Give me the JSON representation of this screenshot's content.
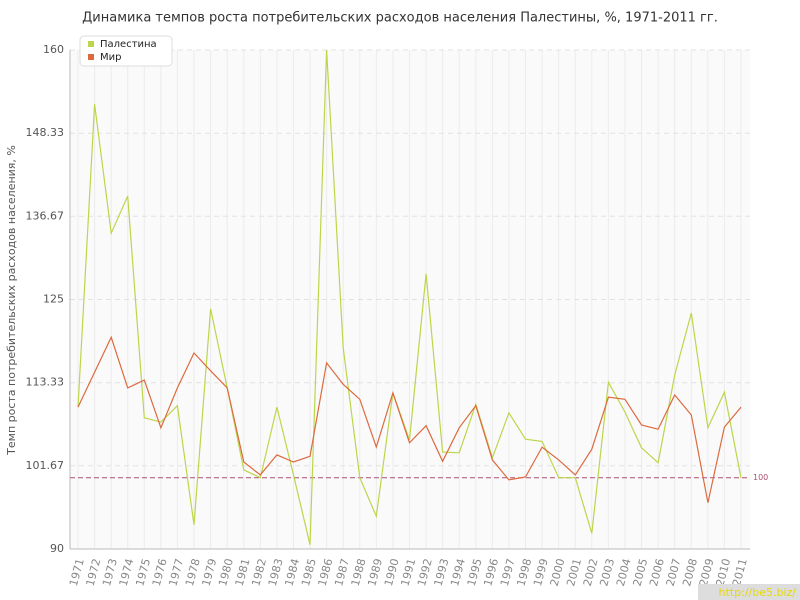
{
  "chart_data": {
    "type": "line",
    "title": "Динамика темпов роста потребительских расходов населения Палестины, %, 1971-2011 гг.",
    "y_label": "Темп роста потребительских расходов населения, %",
    "categories": [
      "1971",
      "1972",
      "1973",
      "1974",
      "1975",
      "1976",
      "1977",
      "1978",
      "1979",
      "1980",
      "1981",
      "1982",
      "1983",
      "1984",
      "1985",
      "1986",
      "1987",
      "1988",
      "1989",
      "1990",
      "1991",
      "1992",
      "1993",
      "1994",
      "1995",
      "1996",
      "1997",
      "1998",
      "1999",
      "2000",
      "2001",
      "2002",
      "2003",
      "2004",
      "2005",
      "2006",
      "2007",
      "2008",
      "2009",
      "2010",
      "2011"
    ],
    "series": [
      {
        "name": "Палестина",
        "color": "#bcd64a",
        "values": [
          109.9,
          152.4,
          134.3,
          139.5,
          108.4,
          107.8,
          110.1,
          93.4,
          123.7,
          112.6,
          101.1,
          100,
          109.9,
          100.4,
          90.6,
          160,
          118.2,
          100,
          94.6,
          111.9,
          105.3,
          128.6,
          103.6,
          103.5,
          110.3,
          102.8,
          109.1,
          105.4,
          105.1,
          100,
          100,
          92.2,
          113.4,
          109.2,
          104.2,
          102.1,
          114.4,
          123.1,
          107,
          112,
          100
        ]
      },
      {
        "name": "Мир",
        "color": "#dc6a3f",
        "values": [
          109.9,
          114.8,
          119.7,
          112.6,
          113.7,
          107,
          112.6,
          117.5,
          115,
          112.6,
          102.2,
          100.4,
          103.2,
          102.2,
          103,
          116.1,
          113.1,
          111,
          104.3,
          111.9,
          104.9,
          107.3,
          102.3,
          107,
          110.1,
          102.5,
          99.7,
          100.1,
          104.3,
          102.5,
          100.4,
          104,
          111.3,
          111,
          107.4,
          106.8,
          111.6,
          108.8,
          96.5,
          107.1,
          109.9
        ]
      }
    ],
    "ylim": [
      90,
      160
    ],
    "yticks": [
      90,
      101.67,
      113.33,
      125,
      136.67,
      148.33,
      160
    ],
    "reference_line": 100,
    "reference_color": "#b05070",
    "grid": true,
    "legend": "top-left",
    "watermark": "http://be5.biz/"
  }
}
